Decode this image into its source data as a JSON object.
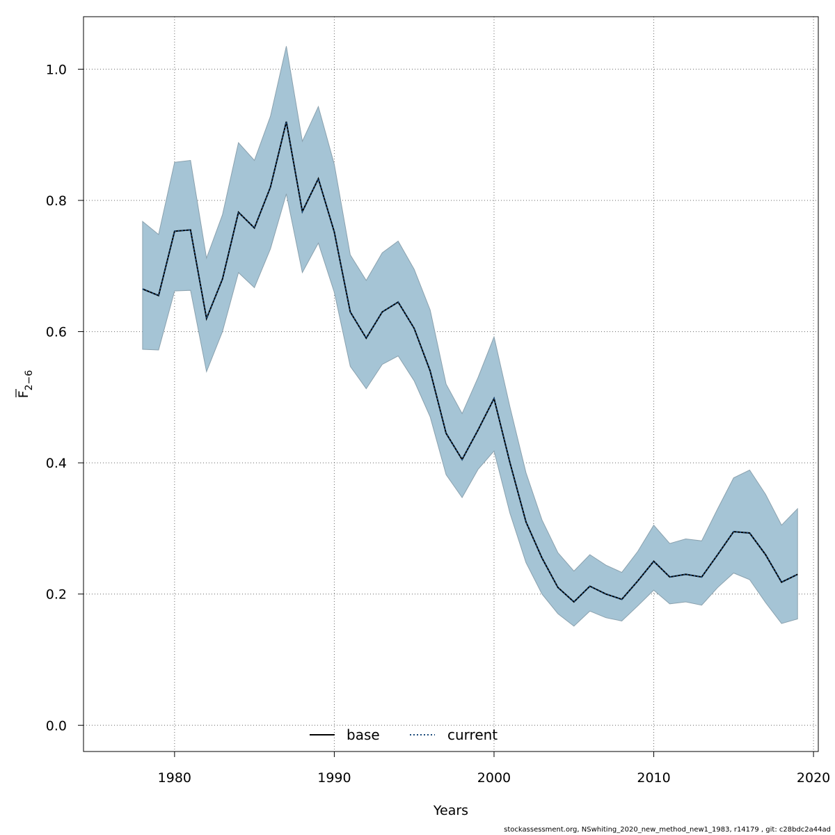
{
  "chart_data": {
    "type": "line",
    "xlabel": "Years",
    "ylabel": "F",
    "ylabel_subscript": "2−6",
    "xlim": [
      1974.3,
      2020.3
    ],
    "ylim": [
      -0.04,
      1.08
    ],
    "x_ticks": [
      1980,
      1990,
      2000,
      2010,
      2020
    ],
    "y_ticks": [
      0.0,
      0.2,
      0.4,
      0.6,
      0.8,
      1.0
    ],
    "x_tick_labels": [
      "1980",
      "1990",
      "2000",
      "2010",
      "2020"
    ],
    "y_tick_labels": [
      "0.0",
      "0.2",
      "0.4",
      "0.6",
      "0.8",
      "1.0"
    ],
    "grid": true,
    "legend_position": "bottom-center",
    "colors": {
      "band": "#a5c4d5",
      "band_edge": "#8aa1ae",
      "grid": "#666666",
      "current": "#1a4a7a",
      "base": "#000000"
    },
    "x": [
      1978,
      1979,
      1980,
      1981,
      1982,
      1983,
      1984,
      1985,
      1986,
      1987,
      1988,
      1989,
      1990,
      1991,
      1992,
      1993,
      1994,
      1995,
      1996,
      1997,
      1998,
      1999,
      2000,
      2001,
      2002,
      2003,
      2004,
      2005,
      2006,
      2007,
      2008,
      2009,
      2010,
      2011,
      2012,
      2013,
      2014,
      2015,
      2016,
      2017,
      2018,
      2019
    ],
    "series": [
      {
        "name": "base",
        "style": "solid",
        "values": [
          0.665,
          0.655,
          0.753,
          0.755,
          0.62,
          0.68,
          0.782,
          0.758,
          0.82,
          0.92,
          0.783,
          0.833,
          0.752,
          0.63,
          0.59,
          0.63,
          0.645,
          0.605,
          0.54,
          0.445,
          0.405,
          0.45,
          0.498,
          0.4,
          0.31,
          0.255,
          0.21,
          0.188,
          0.212,
          0.2,
          0.192,
          0.22,
          0.25,
          0.226,
          0.23,
          0.226,
          0.26,
          0.295,
          0.293,
          0.26,
          0.218,
          0.23
        ]
      },
      {
        "name": "current",
        "style": "dotted",
        "values": [
          0.665,
          0.655,
          0.753,
          0.755,
          0.62,
          0.68,
          0.782,
          0.758,
          0.82,
          0.92,
          0.783,
          0.833,
          0.752,
          0.63,
          0.59,
          0.63,
          0.645,
          0.605,
          0.54,
          0.445,
          0.405,
          0.45,
          0.498,
          0.4,
          0.31,
          0.255,
          0.21,
          0.188,
          0.212,
          0.2,
          0.192,
          0.22,
          0.25,
          0.226,
          0.23,
          0.226,
          0.26,
          0.295,
          0.293,
          0.26,
          0.218,
          0.23
        ]
      }
    ],
    "band": {
      "upper": [
        0.768,
        0.748,
        0.858,
        0.861,
        0.712,
        0.778,
        0.888,
        0.861,
        0.928,
        1.035,
        0.89,
        0.943,
        0.855,
        0.717,
        0.678,
        0.72,
        0.738,
        0.695,
        0.633,
        0.52,
        0.475,
        0.53,
        0.592,
        0.485,
        0.385,
        0.313,
        0.263,
        0.235,
        0.26,
        0.244,
        0.233,
        0.265,
        0.305,
        0.277,
        0.284,
        0.281,
        0.33,
        0.377,
        0.389,
        0.352,
        0.305,
        0.33
      ],
      "lower": [
        0.573,
        0.572,
        0.662,
        0.663,
        0.539,
        0.6,
        0.69,
        0.667,
        0.726,
        0.81,
        0.69,
        0.735,
        0.66,
        0.547,
        0.513,
        0.55,
        0.563,
        0.525,
        0.47,
        0.382,
        0.347,
        0.39,
        0.418,
        0.323,
        0.248,
        0.2,
        0.17,
        0.151,
        0.174,
        0.164,
        0.159,
        0.182,
        0.206,
        0.185,
        0.188,
        0.183,
        0.21,
        0.232,
        0.222,
        0.187,
        0.155,
        0.162
      ]
    }
  },
  "legend": {
    "items": [
      "base",
      "current"
    ]
  },
  "footer": {
    "text": "stockassessment.org, NSwhiting_2020_new_method_new1_1983, r14179 , git: c28bdc2a44ad"
  }
}
